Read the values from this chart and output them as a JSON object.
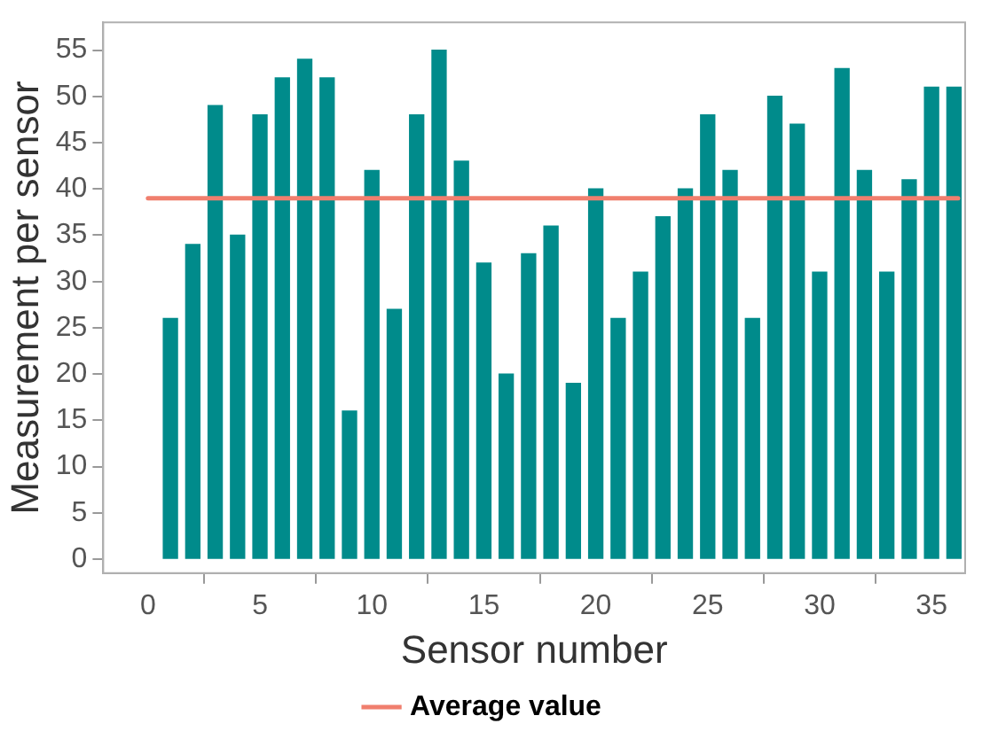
{
  "chart_data": {
    "type": "bar",
    "xlabel": "Sensor number",
    "ylabel": "Measurement per sensor",
    "x": [
      1,
      2,
      3,
      4,
      5,
      6,
      7,
      8,
      9,
      10,
      11,
      12,
      13,
      14,
      15,
      16,
      17,
      18,
      19,
      20,
      21,
      22,
      23,
      24,
      25,
      26,
      27,
      28,
      29,
      30,
      31,
      32,
      33,
      34,
      35,
      36
    ],
    "values": [
      26,
      34,
      49,
      35,
      48,
      52,
      54,
      52,
      16,
      42,
      27,
      48,
      55,
      43,
      32,
      20,
      33,
      36,
      19,
      40,
      26,
      31,
      37,
      40,
      48,
      42,
      26,
      50,
      47,
      31,
      53,
      42,
      31,
      41,
      51,
      51
    ],
    "color": "#008b8b",
    "xlim": [
      -2,
      36.5
    ],
    "xticks": [
      0,
      5,
      10,
      15,
      20,
      25,
      30,
      35
    ],
    "ylim": [
      -1.5,
      58
    ],
    "yticks": [
      0,
      5,
      10,
      15,
      20,
      25,
      30,
      35,
      40,
      45,
      50,
      55
    ],
    "ref_lines": [
      {
        "axis": "y",
        "value": 39,
        "label": "Average value",
        "color": "#f07f6e"
      }
    ],
    "grid": false,
    "legend": "bottom"
  }
}
